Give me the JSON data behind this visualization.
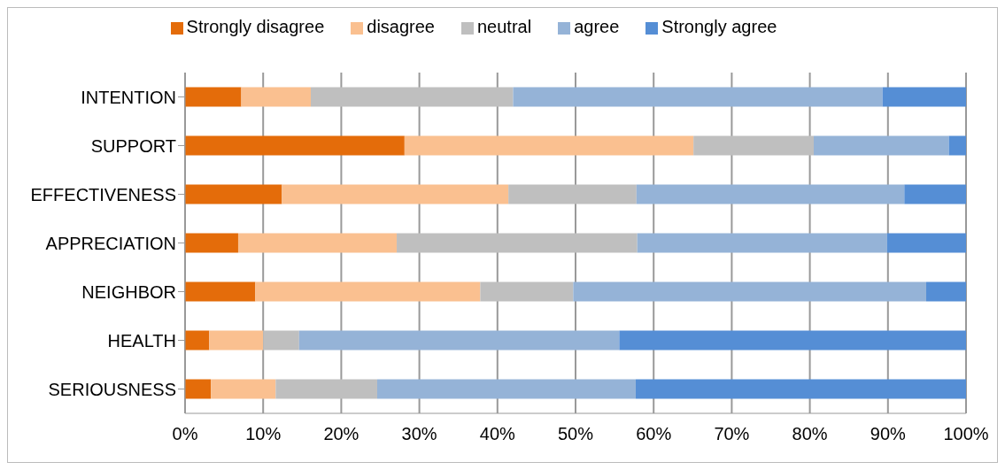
{
  "chart_data": {
    "type": "bar",
    "orientation": "horizontal",
    "stacked": true,
    "categories": [
      "INTENTION",
      "SUPPORT",
      "EFFECTIVENESS",
      "APPRECIATION",
      "NEIGHBOR",
      "HEALTH",
      "SERIOUSNESS"
    ],
    "series": [
      {
        "name": "Strongly disagree",
        "color": "#e46c0a",
        "values": [
          7.2,
          28.1,
          12.4,
          6.8,
          9.0,
          3.1,
          3.3
        ]
      },
      {
        "name": "disagree",
        "color": "#fac090",
        "values": [
          8.9,
          37.0,
          29.0,
          20.3,
          28.8,
          6.9,
          8.3
        ]
      },
      {
        "name": "neutral",
        "color": "#bfbfbf",
        "values": [
          25.9,
          15.4,
          16.4,
          30.8,
          11.9,
          4.6,
          13.0
        ]
      },
      {
        "name": "agree",
        "color": "#95b3d7",
        "values": [
          47.3,
          17.3,
          34.3,
          32.0,
          45.2,
          41.0,
          33.1
        ]
      },
      {
        "name": "Strongly agree",
        "color": "#558ed5",
        "values": [
          10.7,
          2.2,
          7.9,
          10.1,
          5.1,
          44.4,
          42.3
        ]
      }
    ],
    "xlim": [
      0,
      100
    ],
    "xticks": [
      {
        "value": 0,
        "label": "0%"
      },
      {
        "value": 10,
        "label": "10%"
      },
      {
        "value": 20,
        "label": "20%"
      },
      {
        "value": 30,
        "label": "30%"
      },
      {
        "value": 40,
        "label": "40%"
      },
      {
        "value": 50,
        "label": "50%"
      },
      {
        "value": 60,
        "label": "60%"
      },
      {
        "value": 70,
        "label": "70%"
      },
      {
        "value": 80,
        "label": "80%"
      },
      {
        "value": 90,
        "label": "90%"
      },
      {
        "value": 100,
        "label": "100%"
      }
    ],
    "grid": "x",
    "legend": "top"
  }
}
